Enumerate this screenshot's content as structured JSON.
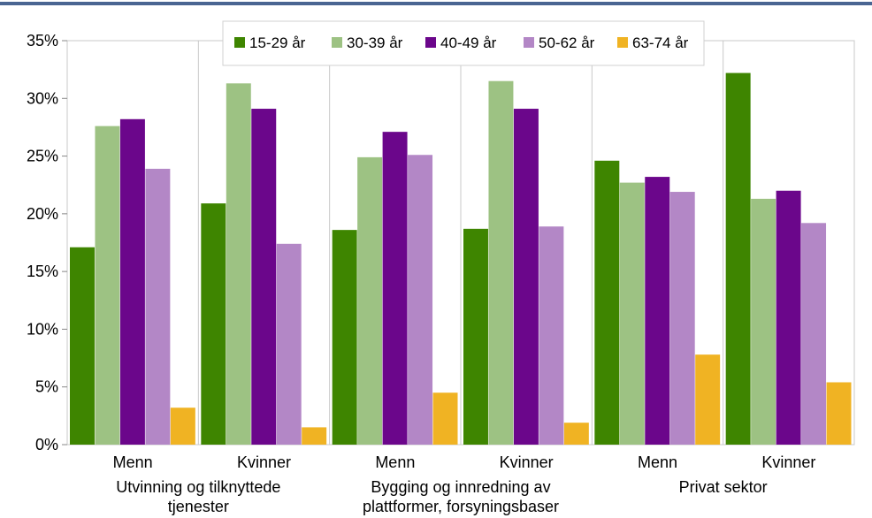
{
  "chart_data": {
    "type": "bar",
    "groups": [
      {
        "label": "Utvinning og tilknyttede tjenester",
        "lines": [
          "Utvinning og tilknyttede",
          "tjenester"
        ]
      },
      {
        "label": "Bygging og innredning av plattformer, forsyningsbaser",
        "lines": [
          "Bygging og innredning av",
          "plattformer, forsyningsbaser"
        ]
      },
      {
        "label": "Privat sektor",
        "lines": [
          "Privat sektor"
        ]
      }
    ],
    "categories": [
      "Menn",
      "Kvinner",
      "Menn",
      "Kvinner",
      "Menn",
      "Kvinner"
    ],
    "series": [
      {
        "name": "15-29 år",
        "color": "#3E8500",
        "values": [
          17.1,
          20.9,
          18.6,
          18.7,
          24.6,
          32.2
        ]
      },
      {
        "name": "30-39 år",
        "color": "#9DC283",
        "values": [
          27.6,
          31.3,
          24.9,
          31.5,
          22.7,
          21.3
        ]
      },
      {
        "name": "40-49 år",
        "color": "#6B068B",
        "values": [
          28.2,
          29.1,
          27.1,
          29.1,
          23.2,
          22.0
        ]
      },
      {
        "name": "50-62 år",
        "color": "#B387C6",
        "values": [
          23.9,
          17.4,
          25.1,
          18.9,
          21.9,
          19.2
        ]
      },
      {
        "name": "63-74 år",
        "color": "#F0B323",
        "values": [
          3.2,
          1.5,
          4.5,
          1.9,
          7.8,
          5.4
        ]
      }
    ],
    "ylim": [
      0,
      35
    ],
    "yticks": [
      0,
      5,
      10,
      15,
      20,
      25,
      30,
      35
    ],
    "ytick_labels": [
      "0%",
      "5%",
      "10%",
      "15%",
      "20%",
      "25%",
      "30%",
      "35%"
    ],
    "grid": false,
    "legend": "top-center",
    "header_rule_color": "#4A6592"
  }
}
